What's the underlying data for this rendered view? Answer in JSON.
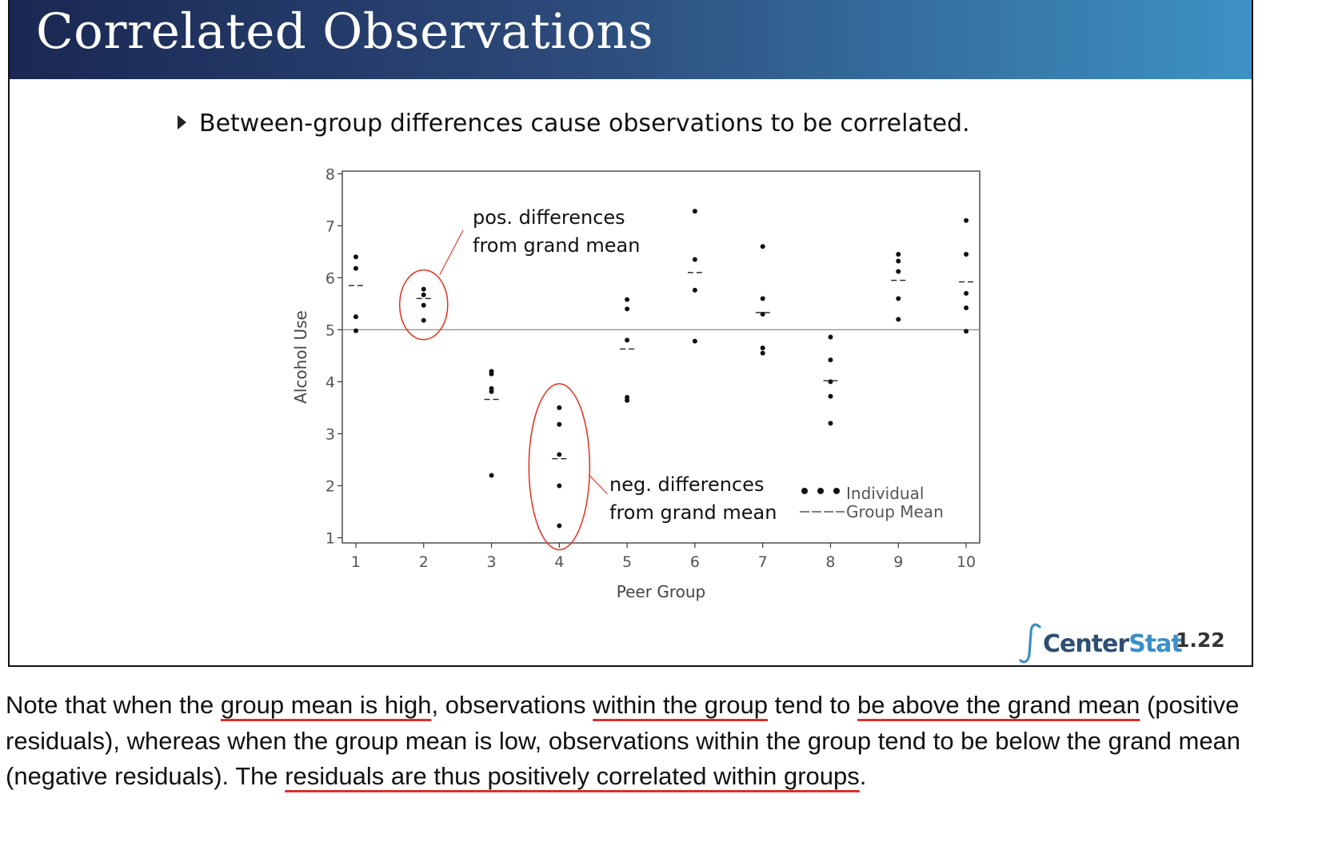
{
  "slide": {
    "title": "Correlated Observations",
    "bullet": "Between-group differences cause observations to be correlated.",
    "logo_brand_center": "Center",
    "logo_brand_stat": "Stat",
    "slide_number": "1.22"
  },
  "note": {
    "segments": [
      {
        "text": "Note that when the ",
        "underline": false
      },
      {
        "text": "group mean is high",
        "underline": true
      },
      {
        "text": ", observations ",
        "underline": false
      },
      {
        "text": "within the group",
        "underline": true
      },
      {
        "text": " tend to ",
        "underline": false
      },
      {
        "text": "be above the grand mean",
        "underline": true
      },
      {
        "text": " (positive residuals), whereas when the group mean is low, observations within the group tend to be below the grand mean (negative residuals).  The ",
        "underline": false
      },
      {
        "text": "residuals are thus positively correlated within groups",
        "underline": true
      },
      {
        "text": ".",
        "underline": false
      }
    ],
    "underline_color": "#d9302c"
  },
  "chart_data": {
    "type": "scatter",
    "xlabel": "Peer Group",
    "ylabel": "Alcohol Use",
    "xlim": [
      0.8,
      10.2
    ],
    "ylim": [
      0.9,
      8.05
    ],
    "x_ticks": [
      1,
      2,
      3,
      4,
      5,
      6,
      7,
      8,
      9,
      10
    ],
    "y_ticks": [
      1,
      2,
      3,
      4,
      5,
      6,
      7,
      8
    ],
    "grand_mean": 5.0,
    "grid": false,
    "legend_position": "bottom-right",
    "series": [
      {
        "name": "Individual",
        "marker": "dot",
        "points": [
          [
            1,
            6.4
          ],
          [
            1,
            6.18
          ],
          [
            1,
            5.25
          ],
          [
            1,
            4.98
          ],
          [
            2,
            5.78
          ],
          [
            2,
            5.67
          ],
          [
            2,
            5.47
          ],
          [
            2,
            5.18
          ],
          [
            3,
            4.2
          ],
          [
            3,
            4.15
          ],
          [
            3,
            3.87
          ],
          [
            3,
            3.81
          ],
          [
            3,
            2.2
          ],
          [
            4,
            3.5
          ],
          [
            4,
            3.18
          ],
          [
            4,
            2.6
          ],
          [
            4,
            2.0
          ],
          [
            4,
            1.23
          ],
          [
            5,
            5.58
          ],
          [
            5,
            5.4
          ],
          [
            5,
            4.8
          ],
          [
            5,
            3.7
          ],
          [
            5,
            3.64
          ],
          [
            6,
            7.28
          ],
          [
            6,
            6.35
          ],
          [
            6,
            5.76
          ],
          [
            6,
            4.78
          ],
          [
            7,
            6.6
          ],
          [
            7,
            5.6
          ],
          [
            7,
            5.3
          ],
          [
            7,
            4.65
          ],
          [
            7,
            4.55
          ],
          [
            8,
            4.86
          ],
          [
            8,
            4.42
          ],
          [
            8,
            4.0
          ],
          [
            8,
            3.72
          ],
          [
            8,
            3.2
          ],
          [
            9,
            6.45
          ],
          [
            9,
            6.32
          ],
          [
            9,
            6.12
          ],
          [
            9,
            5.6
          ],
          [
            9,
            5.2
          ],
          [
            10,
            7.1
          ],
          [
            10,
            6.45
          ],
          [
            10,
            5.7
          ],
          [
            10,
            5.42
          ],
          [
            10,
            4.97
          ]
        ]
      },
      {
        "name": "Group Mean",
        "marker": "dash",
        "points": [
          [
            1,
            5.85
          ],
          [
            2,
            5.6
          ],
          [
            3,
            3.66
          ],
          [
            4,
            2.52
          ],
          [
            5,
            4.63
          ],
          [
            6,
            6.1
          ],
          [
            7,
            5.33
          ],
          [
            8,
            4.02
          ],
          [
            9,
            5.95
          ],
          [
            10,
            5.92
          ]
        ]
      }
    ],
    "annotations": [
      {
        "lines": [
          "pos. differences",
          "from grand mean"
        ],
        "target_group": 2,
        "color": "#e0301e"
      },
      {
        "lines": [
          "neg. differences",
          "from grand mean"
        ],
        "target_group": 4,
        "color": "#e0301e"
      }
    ],
    "colors": {
      "points": "#111111",
      "axis": "#333333",
      "grand_mean_line": "#8a8a8a",
      "annotation": "#e0301e"
    }
  }
}
